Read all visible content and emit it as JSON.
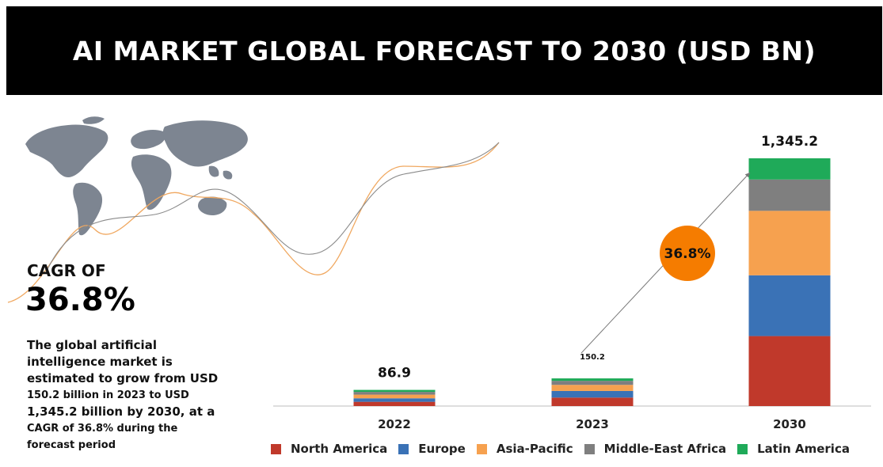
{
  "header": {
    "title": "AI MARKET GLOBAL FORECAST TO 2030 (USD BN)"
  },
  "cagr": {
    "label": "CAGR OF",
    "value": "36.8%"
  },
  "description": {
    "line1": "The global artificial",
    "line2": "intelligence market is",
    "line3": "estimated to grow from USD",
    "line4": "150.2 billion in 2023 to USD",
    "line5": "1,345.2 billion by 2030, at a",
    "line6": "CAGR of 36.8% during the",
    "line7": "forecast period"
  },
  "icons": {
    "map": "world-map-icon"
  },
  "chart_data": {
    "type": "bar",
    "stacked": true,
    "categories": [
      "2022",
      "2023",
      "2030"
    ],
    "totals": [
      86.9,
      150.2,
      1345.2
    ],
    "total_labels": [
      "86.9",
      "150.2",
      "1,345.2"
    ],
    "series": [
      {
        "name": "North America",
        "color": "#c0392b",
        "values": [
          23,
          46,
          380
        ]
      },
      {
        "name": "Europe",
        "color": "#3a72b6",
        "values": [
          19,
          36,
          330
        ]
      },
      {
        "name": "Asia-Pacific",
        "color": "#f6a14f",
        "values": [
          20,
          33,
          350
        ]
      },
      {
        "name": "Middle-East Africa",
        "color": "#7f7f7f",
        "values": [
          15,
          22,
          170
        ]
      },
      {
        "name": "Latin America",
        "color": "#1faa59",
        "values": [
          9.9,
          13.2,
          115.2
        ]
      }
    ],
    "annotation": {
      "label": "36.8%",
      "color": "#f57c00"
    },
    "grid": false,
    "legend_position": "bottom"
  }
}
